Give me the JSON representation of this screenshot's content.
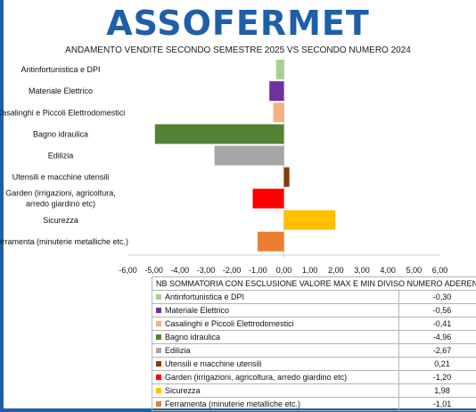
{
  "logo_text": "ASSOFERMET",
  "chart_data": {
    "type": "bar",
    "orientation": "horizontal",
    "title": "ANDAMENTO VENDITE SECONDO SEMESTRE 2025 VS SECONDO NUMERO 2024",
    "xlim": [
      -6,
      6
    ],
    "x_ticks": [
      "-6,00",
      "-5,00",
      "-4,00",
      "-3,00",
      "-2,00",
      "-1,00",
      "0,00",
      "1,00",
      "2,00",
      "3,00",
      "4,00",
      "5,00",
      "6,00"
    ],
    "categories": [
      "Antinfortunistica e DPI",
      "Materiale Elettrico",
      "Casalinghi e Piccoli Elettrodomestici",
      "Bagno idraulica",
      "Edilizia",
      "Utensili e macchine utensili",
      "Garden (irrigazioni, agricoltura, arredo giardino etc)",
      "Sicurezza",
      "Ferramenta (minuterie metalliche etc.)"
    ],
    "chart_labels": [
      [
        "Antinfortunistica e DPI"
      ],
      [
        "Materiale Elettrico"
      ],
      [
        "Casalinghi e Piccoli Elettrodomestici"
      ],
      [
        "Bagno idraulica"
      ],
      [
        "Edilizia"
      ],
      [
        "Utensili e macchine utensili"
      ],
      [
        "Garden (irrigazioni, agricoltura,",
        "arredo giardino etc)"
      ],
      [
        "Sicurezza"
      ],
      [
        "Ferramenta (minuterie metalliche etc.)"
      ]
    ],
    "values": [
      -0.3,
      -0.56,
      -0.41,
      -4.96,
      -2.67,
      0.21,
      -1.2,
      1.98,
      -1.01
    ],
    "colors": [
      "#a9d18e",
      "#7030a0",
      "#f4b183",
      "#548235",
      "#a6a6a6",
      "#843c0c",
      "#ff0000",
      "#ffc000",
      "#ed7d31"
    ]
  },
  "table": {
    "header": "NB SOMMATORIA CON ESCLUSIONE VALORE MAX E MIN DIVISO NUMERO ADERENTI",
    "rows": [
      {
        "label": "Antinfortunistica e DPI",
        "value": "-0,30"
      },
      {
        "label": "Materiale Elettrico",
        "value": "-0,56"
      },
      {
        "label": "Casalinghi e Piccoli Elettrodomestici",
        "value": "-0,41"
      },
      {
        "label": "Bagno idraulica",
        "value": "-4,96"
      },
      {
        "label": "Edilizia",
        "value": "-2,67"
      },
      {
        "label": "Utensili e macchine utensili",
        "value": "0,21"
      },
      {
        "label": "Garden (irrigazioni, agricoltura, arredo giardino etc)",
        "value": "-1,20"
      },
      {
        "label": "Sicurezza",
        "value": "1,98"
      },
      {
        "label": "Ferramenta (minuterie metalliche etc.)",
        "value": "-1,01"
      }
    ]
  }
}
